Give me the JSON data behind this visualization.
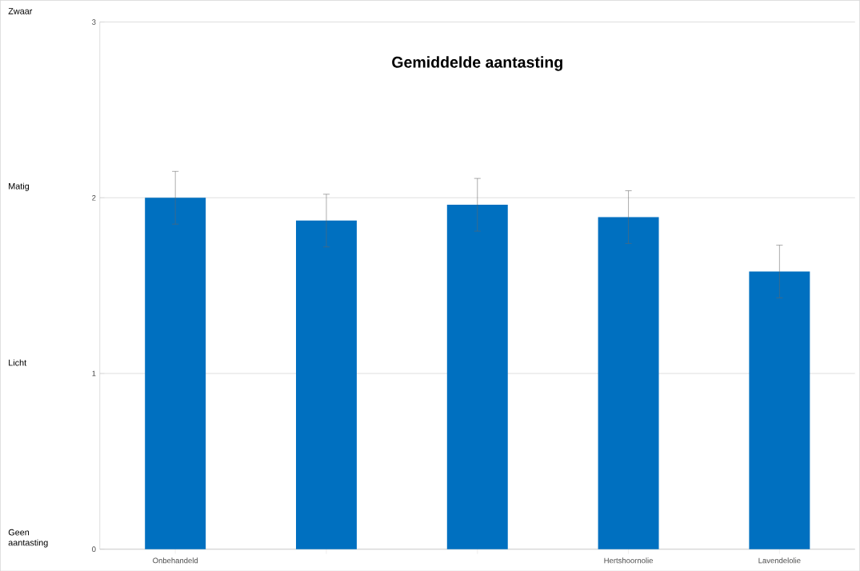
{
  "chart_data": {
    "type": "bar",
    "title": "Gemiddelde aantasting",
    "categories": [
      "Onbehandeld",
      null,
      null,
      "Hertshoornolie",
      "Lavendelolie"
    ],
    "values": [
      2.0,
      1.87,
      1.96,
      1.89,
      1.58
    ],
    "errors": [
      0.15,
      0.15,
      0.15,
      0.15,
      0.15
    ],
    "color": "#0070c0",
    "ylim": [
      0,
      3
    ],
    "yticks": [
      0,
      1,
      2,
      3
    ],
    "grid": "y",
    "annotations": [
      "Zwaar",
      "Matig",
      "Licht",
      "Geen aantasting"
    ]
  }
}
